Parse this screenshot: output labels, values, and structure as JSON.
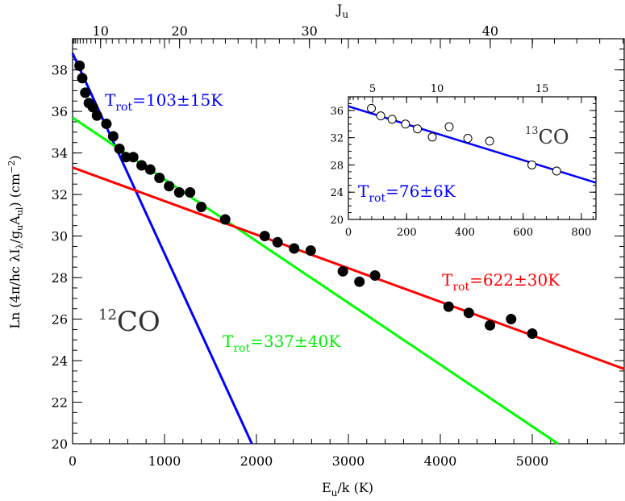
{
  "chart_data": [
    {
      "type": "scatter",
      "xlabel": "E",
      "xlabel_sub": "u",
      "xlabel_tail": "/k (K)",
      "ylabel": "Ln (4π/hc λI",
      "ylabel_parts": [
        "Ln (4π/hc λI",
        "λ",
        "/g",
        "u",
        "A",
        "ul",
        ") (cm",
        "−2",
        ")"
      ],
      "top_axis_label": "J",
      "top_axis_label_sub": "u",
      "xlim": [
        0,
        6000
      ],
      "ylim": [
        20,
        39.5
      ],
      "x_ticks": [
        0,
        1000,
        2000,
        3000,
        4000,
        5000
      ],
      "x_tick_labels": [
        "0",
        "1000",
        "2000",
        "3000",
        "4000",
        "5000"
      ],
      "y_ticks": [
        20,
        22,
        24,
        26,
        28,
        30,
        32,
        34,
        36,
        38
      ],
      "y_tick_labels": [
        "20",
        "22",
        "24",
        "26",
        "28",
        "30",
        "32",
        "34",
        "36",
        "38"
      ],
      "top_ticks_J": [
        10,
        20,
        30,
        40
      ],
      "top_tick_labels": [
        "10",
        "20",
        "30",
        "40"
      ],
      "series": [
        {
          "color": "#000000",
          "marker": "filled-circle",
          "x": [
            76,
            105,
            138,
            177,
            221,
            265,
            368,
            442,
            510,
            580,
            660,
            751,
            845,
            945,
            1050,
            1160,
            1278,
            1400,
            1660,
            2090,
            2230,
            2410,
            2590,
            2940,
            3120,
            3290,
            4090,
            4310,
            4540,
            4770,
            5000
          ],
          "y": [
            38.2,
            37.6,
            36.9,
            36.4,
            36.2,
            35.8,
            35.4,
            34.8,
            34.2,
            33.8,
            33.8,
            33.4,
            33.2,
            32.8,
            32.4,
            32.1,
            32.1,
            31.4,
            30.8,
            30.0,
            29.7,
            29.4,
            29.3,
            28.3,
            27.8,
            28.1,
            26.6,
            26.3,
            25.7,
            26.0,
            25.3
          ]
        }
      ],
      "fits": [
        {
          "label": "T",
          "label_sub": "rot",
          "label_tail": "=103±15K",
          "color": "#0000ff",
          "x": [
            0,
            1950
          ],
          "y": [
            38.8,
            20
          ]
        },
        {
          "label": "T",
          "label_sub": "rot",
          "label_tail": "=337±40K",
          "color": "#00ff00",
          "x": [
            0,
            5280
          ],
          "y": [
            35.7,
            20
          ]
        },
        {
          "label": "T",
          "label_sub": "rot",
          "label_tail": "=622±30K",
          "color": "#ff0000",
          "x": [
            0,
            6000
          ],
          "y": [
            33.3,
            23.6
          ]
        }
      ],
      "species_label_sup": "12",
      "species_label": "CO"
    },
    {
      "type": "scatter",
      "xlim": [
        0,
        850
      ],
      "ylim": [
        20,
        38
      ],
      "x_ticks": [
        0,
        200,
        400,
        600,
        800
      ],
      "x_tick_labels": [
        "0",
        "200",
        "400",
        "600",
        "800"
      ],
      "y_ticks": [
        20,
        24,
        28,
        32,
        36
      ],
      "y_tick_labels": [
        "20",
        "24",
        "28",
        "32",
        "36"
      ],
      "top_ticks_J": [
        5,
        10,
        15
      ],
      "top_tick_labels": [
        "5",
        "10",
        "15"
      ],
      "series": [
        {
          "color": "#000000",
          "marker": "open-circle",
          "x": [
            79,
            111,
            150,
            196,
            237,
            288,
            346,
            410,
            485,
            630,
            715
          ],
          "y": [
            36.3,
            35.2,
            34.7,
            34.0,
            33.3,
            32.1,
            33.6,
            31.9,
            31.5,
            28.0,
            27.1
          ]
        }
      ],
      "fits": [
        {
          "label": "T",
          "label_sub": "rot",
          "label_tail": "=76±6K",
          "color": "#0000ff",
          "x": [
            0,
            850
          ],
          "y": [
            36.6,
            25.4
          ]
        }
      ],
      "species_label_sup": "13",
      "species_label": "CO"
    }
  ]
}
